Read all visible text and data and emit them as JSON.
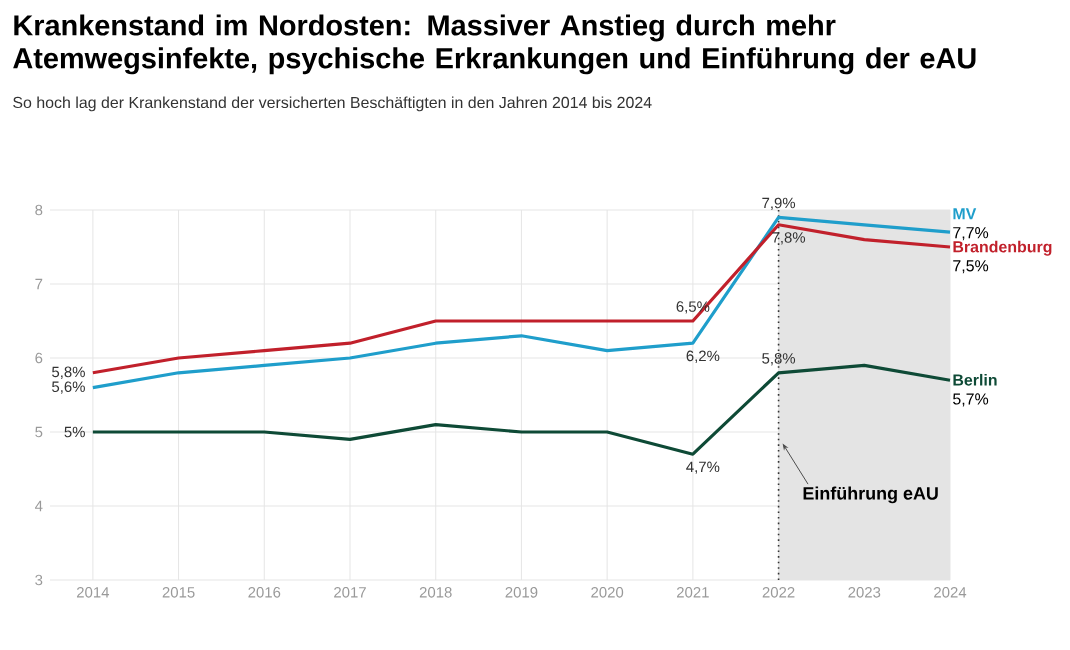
{
  "chart_data": {
    "type": "line",
    "title": "Krankenstand im Nordosten: Massiver Anstieg durch mehr Atemwegsinfekte, psychische Erkrankungen und Einführung der eAU",
    "subtitle": "So hoch lag der Krankenstand der versicherten Beschäftigten in den Jahren 2014 bis 2024",
    "x": [
      2014,
      2015,
      2016,
      2017,
      2018,
      2019,
      2020,
      2021,
      2022,
      2023,
      2024
    ],
    "series": [
      {
        "name": "MV",
        "color": "#1f9ecb",
        "values": [
          5.6,
          5.8,
          5.9,
          6.0,
          6.2,
          6.3,
          6.1,
          6.2,
          7.9,
          7.8,
          7.7
        ],
        "value_labels": [
          "5,6%",
          null,
          null,
          null,
          null,
          null,
          null,
          "6,2%",
          "7,9%",
          null,
          "7,7%"
        ]
      },
      {
        "name": "Brandenburg",
        "color": "#c1202b",
        "values": [
          5.8,
          6.0,
          6.1,
          6.2,
          6.5,
          6.5,
          6.5,
          6.5,
          7.8,
          7.6,
          7.5
        ],
        "value_labels": [
          "5,8%",
          null,
          null,
          null,
          null,
          null,
          null,
          "6,5%",
          "7,8%",
          null,
          "7,5%"
        ]
      },
      {
        "name": "Berlin",
        "color": "#0e4a36",
        "values": [
          5.0,
          5.0,
          5.0,
          4.9,
          5.1,
          5.0,
          5.0,
          4.7,
          5.8,
          5.9,
          5.7
        ],
        "value_labels": [
          "5%",
          null,
          null,
          null,
          null,
          null,
          null,
          "4,7%",
          "5,8%",
          null,
          "5,7%"
        ]
      }
    ],
    "xlim": [
      2013.5,
      2024
    ],
    "ylim": [
      3,
      8
    ],
    "xticks": [
      2014,
      2015,
      2016,
      2017,
      2018,
      2019,
      2020,
      2021,
      2022,
      2023,
      2024
    ],
    "yticks": [
      3,
      4,
      5,
      6,
      7,
      8
    ],
    "grid": true,
    "legend": false,
    "line_style": "solid",
    "ref_lines": [
      {
        "axis": "x",
        "value": 2022,
        "line_style": "dotted",
        "color": "#333333"
      }
    ],
    "bands": [
      {
        "axis": "x",
        "from": 2022,
        "to": 2024,
        "color": "#e4e4e4"
      }
    ],
    "annotations": [
      {
        "text": "Einführung eAU",
        "x": 2022,
        "y": 4.9
      }
    ]
  }
}
